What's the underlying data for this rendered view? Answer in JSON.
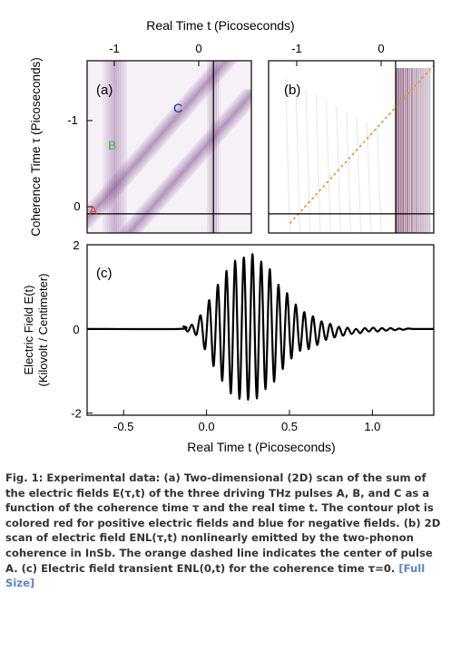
{
  "chart_data": [
    {
      "type": "heatmap",
      "panel_label": "(a)",
      "xlabel": "Real Time t (Picoseconds)",
      "ylabel": "Coherence Time τ (Picoseconds)",
      "x_ticks": [
        "-1",
        "0"
      ],
      "y_ticks": [
        "-1",
        "0"
      ],
      "xlim": [
        -1.5,
        0.45
      ],
      "ylim": [
        0.2,
        -1.6
      ],
      "pulse_labels": [
        {
          "text": "A",
          "color": "#e8413c",
          "t": -1.47,
          "tau": 0.0
        },
        {
          "text": "B",
          "color": "#3cb84a",
          "t": -1.23,
          "tau": -0.72
        },
        {
          "text": "C",
          "color": "#1a2a8c",
          "t": -0.27,
          "tau": -1.17
        }
      ],
      "pulses": [
        {
          "name": "A",
          "description": "constant in real time",
          "t_start": -1.45,
          "t_end": 0.45,
          "tau": 0.0
        },
        {
          "name": "B",
          "description": "vertical stripe",
          "t": -1.17
        },
        {
          "name": "C",
          "description": "diagonal",
          "t0": 0.0,
          "tau0": -0.8
        }
      ]
    },
    {
      "type": "heatmap",
      "panel_label": "(b)",
      "x_ticks": [
        "-1",
        "0"
      ],
      "xlim": [
        -1.5,
        0.45
      ],
      "ylim": [
        0.2,
        -1.6
      ],
      "color_positive": "#c0392b",
      "color_negative": "#2c3e9e",
      "dashed_line": {
        "color": "#e8922a",
        "t": [
          -1.25,
          0.45
        ],
        "tau": [
          0.1,
          -1.55
        ]
      }
    },
    {
      "type": "line",
      "panel_label": "(c)",
      "xlabel": "Real Time t (Picoseconds)",
      "ylabel": "Electric Field E(t) (Kilovolt / Centimeter)",
      "ylabel_line1": "Electric Field E(t)",
      "ylabel_line2": "(Kilovolt / Centimeter)",
      "x_ticks": [
        "-0.5",
        "0.0",
        "0.5",
        "1.0"
      ],
      "x_tick_values": [
        -0.5,
        0.0,
        0.5,
        1.0
      ],
      "y_ticks": [
        "2",
        "0",
        "-2"
      ],
      "y_tick_values": [
        2,
        0,
        -2
      ],
      "xlim": [
        -0.72,
        1.37
      ],
      "ylim": [
        -2.05,
        2.0
      ],
      "series": [
        {
          "points": [
            [
              -0.72,
              0.0
            ],
            [
              -0.17,
              0.0
            ],
            [
              -0.139,
              0.06
            ],
            [
              -0.113,
              -0.06
            ],
            [
              -0.087,
              0.1
            ],
            [
              -0.061,
              -0.14
            ],
            [
              -0.035,
              0.32
            ],
            [
              -0.009,
              -0.48
            ],
            [
              0.017,
              0.68
            ],
            [
              0.043,
              -0.88
            ],
            [
              0.069,
              1.05
            ],
            [
              0.095,
              -1.23
            ],
            [
              0.121,
              1.38
            ],
            [
              0.147,
              -1.53
            ],
            [
              0.173,
              1.62
            ],
            [
              0.199,
              -1.66
            ],
            [
              0.225,
              1.7
            ],
            [
              0.251,
              -1.68
            ],
            [
              0.277,
              1.78
            ],
            [
              0.303,
              -1.65
            ],
            [
              0.329,
              1.6
            ],
            [
              0.355,
              -1.43
            ],
            [
              0.381,
              1.42
            ],
            [
              0.407,
              -1.25
            ],
            [
              0.433,
              1.05
            ],
            [
              0.459,
              -0.95
            ],
            [
              0.485,
              0.85
            ],
            [
              0.511,
              -0.7
            ],
            [
              0.537,
              0.58
            ],
            [
              0.563,
              -0.52
            ],
            [
              0.589,
              0.4
            ],
            [
              0.615,
              -0.48
            ],
            [
              0.641,
              0.3
            ],
            [
              0.667,
              -0.38
            ],
            [
              0.693,
              0.18
            ],
            [
              0.719,
              -0.26
            ],
            [
              0.745,
              0.12
            ],
            [
              0.771,
              -0.2
            ],
            [
              0.797,
              0.05
            ],
            [
              0.823,
              -0.16
            ],
            [
              0.849,
              0.03
            ],
            [
              0.875,
              -0.12
            ],
            [
              0.901,
              0.0
            ],
            [
              0.927,
              -0.1
            ],
            [
              0.953,
              0.02
            ],
            [
              0.979,
              -0.06
            ],
            [
              1.005,
              0.03
            ],
            [
              1.031,
              -0.06
            ],
            [
              1.057,
              0.02
            ],
            [
              1.083,
              -0.04
            ],
            [
              1.109,
              0.02
            ],
            [
              1.135,
              -0.03
            ],
            [
              1.161,
              0.01
            ],
            [
              1.187,
              -0.02
            ],
            [
              1.213,
              0.01
            ],
            [
              1.25,
              0.0
            ],
            [
              1.37,
              0.0
            ]
          ]
        }
      ]
    }
  ],
  "caption": {
    "text": "Fig. 1: Experimental data: (a) Two-dimensional (2D) scan of the sum of the electric fields E(τ,t) of the three driving THz pulses A, B, and C as a function of the coherence time τ and the real time t. The contour plot is colored red for positive electric fields and blue for negative fields. (b) 2D scan of electric field ENL(τ,t) nonlinearly emitted by the two-phonon coherence in InSb. The orange dashed line indicates the center of pulse A. (c) Electric field transient ENL(0,t) for the coherence time τ=0. ",
    "link_text": "[Full Size]"
  }
}
